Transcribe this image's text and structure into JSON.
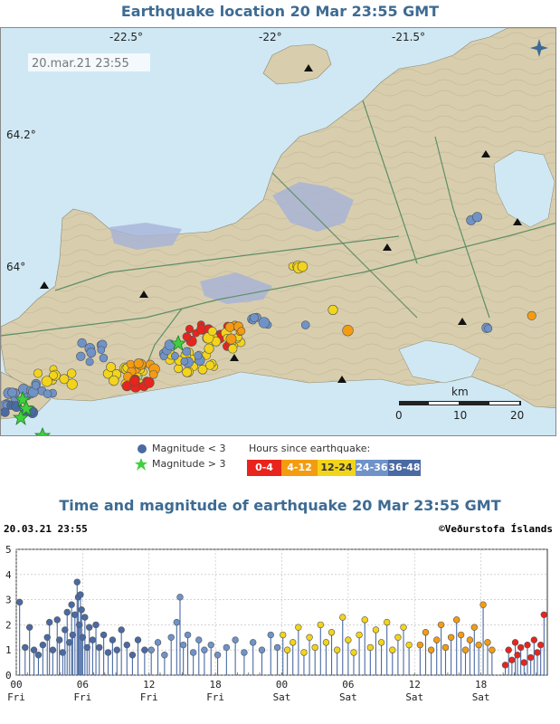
{
  "map": {
    "title": "Earthquake location   20 Mar 23:55 GMT",
    "timestamp": "20.mar.21  23:55",
    "lon_labels": [
      "-22.5°",
      "-22°",
      "-21.5°"
    ],
    "lat_labels": [
      "64.2°",
      "64°"
    ],
    "scale": {
      "unit": "km",
      "ticks": [
        "0",
        "10",
        "20"
      ]
    },
    "compass_icon": "compass-rose-icon",
    "colors": {
      "sea": "#cfe8f4",
      "land": "#d8ceae",
      "contour": "#b5a684",
      "road": "#5f8f66",
      "lava": "#a6b3d8",
      "water": "#cfe8f4"
    }
  },
  "legend": {
    "mag_small": "Magnitude < 3",
    "mag_large": "Magnitude > 3",
    "hours_title": "Hours since earthquake:",
    "bins": [
      {
        "label": "0-4",
        "color": "#e8241c"
      },
      {
        "label": "4-12",
        "color": "#f39c12"
      },
      {
        "label": "12-24",
        "color": "#f2d41b"
      },
      {
        "label": "24-36",
        "color": "#6f93c8"
      },
      {
        "label": "36-48",
        "color": "#4a6aa3"
      }
    ]
  },
  "chart": {
    "title": "Time and magnitude of earthquake   20 Mar 23:55 GMT",
    "timestamp": "20.03.21 23:55",
    "credit": "©Veðurstofa Íslands",
    "y_ticks": [
      "5",
      "4",
      "3",
      "2",
      "1",
      "0"
    ],
    "x_ticks": [
      {
        "hour": "00",
        "day": "Fri"
      },
      {
        "hour": "06",
        "day": "Fri"
      },
      {
        "hour": "12",
        "day": "Fri"
      },
      {
        "hour": "18",
        "day": "Fri"
      },
      {
        "hour": "00",
        "day": "Sat"
      },
      {
        "hour": "06",
        "day": "Sat"
      },
      {
        "hour": "12",
        "day": "Sat"
      },
      {
        "hour": "18",
        "day": "Sat"
      }
    ]
  },
  "chart_data": {
    "type": "scatter",
    "title": "Time and magnitude of earthquake   20 Mar 23:55 GMT",
    "xlabel": "",
    "ylabel": "",
    "x_unit": "hours since 00 Fri",
    "xlim": [
      0,
      48
    ],
    "ylim": [
      0,
      5
    ],
    "grid": true,
    "series": [
      {
        "name": "36-48",
        "color": "#4a6aa3",
        "points": [
          [
            0.3,
            2.9
          ],
          [
            0.8,
            1.1
          ],
          [
            1.2,
            1.9
          ],
          [
            1.6,
            1.0
          ],
          [
            2.0,
            0.8
          ],
          [
            2.4,
            1.2
          ],
          [
            2.8,
            1.5
          ],
          [
            3.0,
            2.1
          ],
          [
            3.3,
            1.0
          ],
          [
            3.7,
            2.2
          ],
          [
            3.9,
            1.4
          ],
          [
            4.2,
            0.9
          ],
          [
            4.4,
            1.8
          ],
          [
            4.6,
            2.5
          ],
          [
            4.8,
            1.3
          ],
          [
            5.0,
            2.8
          ],
          [
            5.1,
            1.6
          ],
          [
            5.3,
            2.4
          ],
          [
            5.5,
            3.7
          ],
          [
            5.6,
            3.1
          ],
          [
            5.7,
            2.0
          ],
          [
            5.8,
            3.2
          ],
          [
            5.9,
            2.6
          ],
          [
            6.0,
            1.5
          ],
          [
            6.2,
            2.3
          ],
          [
            6.4,
            1.1
          ],
          [
            6.6,
            1.9
          ],
          [
            6.9,
            1.4
          ],
          [
            7.2,
            2.0
          ],
          [
            7.5,
            1.1
          ],
          [
            7.9,
            1.6
          ],
          [
            8.3,
            0.9
          ],
          [
            8.7,
            1.4
          ],
          [
            9.1,
            1.0
          ],
          [
            9.5,
            1.8
          ],
          [
            10.0,
            1.2
          ],
          [
            10.5,
            0.8
          ],
          [
            11.0,
            1.4
          ],
          [
            11.6,
            1.0
          ]
        ]
      },
      {
        "name": "24-36",
        "color": "#6f93c8",
        "points": [
          [
            12.2,
            1.0
          ],
          [
            12.8,
            1.3
          ],
          [
            13.4,
            0.8
          ],
          [
            14.0,
            1.5
          ],
          [
            14.5,
            2.1
          ],
          [
            14.8,
            3.1
          ],
          [
            15.1,
            1.2
          ],
          [
            15.5,
            1.6
          ],
          [
            16.0,
            0.9
          ],
          [
            16.5,
            1.4
          ],
          [
            17.0,
            1.0
          ],
          [
            17.6,
            1.2
          ],
          [
            18.2,
            0.8
          ],
          [
            19.0,
            1.1
          ],
          [
            19.8,
            1.4
          ],
          [
            20.6,
            0.9
          ],
          [
            21.4,
            1.3
          ],
          [
            22.2,
            1.0
          ],
          [
            23.0,
            1.6
          ],
          [
            23.6,
            1.1
          ]
        ]
      },
      {
        "name": "12-24",
        "color": "#f2d41b",
        "points": [
          [
            24.1,
            1.6
          ],
          [
            24.5,
            1.0
          ],
          [
            25.0,
            1.3
          ],
          [
            25.5,
            1.9
          ],
          [
            26.0,
            0.9
          ],
          [
            26.5,
            1.5
          ],
          [
            27.0,
            1.1
          ],
          [
            27.5,
            2.0
          ],
          [
            28.0,
            1.3
          ],
          [
            28.5,
            1.7
          ],
          [
            29.0,
            1.0
          ],
          [
            29.5,
            2.3
          ],
          [
            30.0,
            1.4
          ],
          [
            30.5,
            0.9
          ],
          [
            31.0,
            1.6
          ],
          [
            31.5,
            2.2
          ],
          [
            32.0,
            1.1
          ],
          [
            32.5,
            1.8
          ],
          [
            33.0,
            1.3
          ],
          [
            33.5,
            2.1
          ],
          [
            34.0,
            1.0
          ],
          [
            34.5,
            1.5
          ],
          [
            35.0,
            1.9
          ],
          [
            35.5,
            1.2
          ]
        ]
      },
      {
        "name": "4-12",
        "color": "#f39c12",
        "points": [
          [
            36.5,
            1.2
          ],
          [
            37.0,
            1.7
          ],
          [
            37.5,
            1.0
          ],
          [
            38.0,
            1.4
          ],
          [
            38.4,
            2.0
          ],
          [
            38.8,
            1.1
          ],
          [
            39.3,
            1.5
          ],
          [
            39.8,
            2.2
          ],
          [
            40.2,
            1.6
          ],
          [
            40.6,
            1.0
          ],
          [
            41.0,
            1.4
          ],
          [
            41.4,
            1.9
          ],
          [
            41.8,
            1.2
          ],
          [
            42.2,
            2.8
          ],
          [
            42.6,
            1.3
          ],
          [
            43.0,
            1.0
          ]
        ]
      },
      {
        "name": "0-4",
        "color": "#e8241c",
        "points": [
          [
            44.2,
            0.4
          ],
          [
            44.5,
            1.0
          ],
          [
            44.8,
            0.6
          ],
          [
            45.1,
            1.3
          ],
          [
            45.3,
            0.8
          ],
          [
            45.6,
            1.1
          ],
          [
            45.9,
            0.5
          ],
          [
            46.2,
            1.2
          ],
          [
            46.5,
            0.7
          ],
          [
            46.8,
            1.4
          ],
          [
            47.1,
            0.9
          ],
          [
            47.4,
            1.2
          ],
          [
            47.7,
            2.4
          ]
        ]
      }
    ]
  }
}
